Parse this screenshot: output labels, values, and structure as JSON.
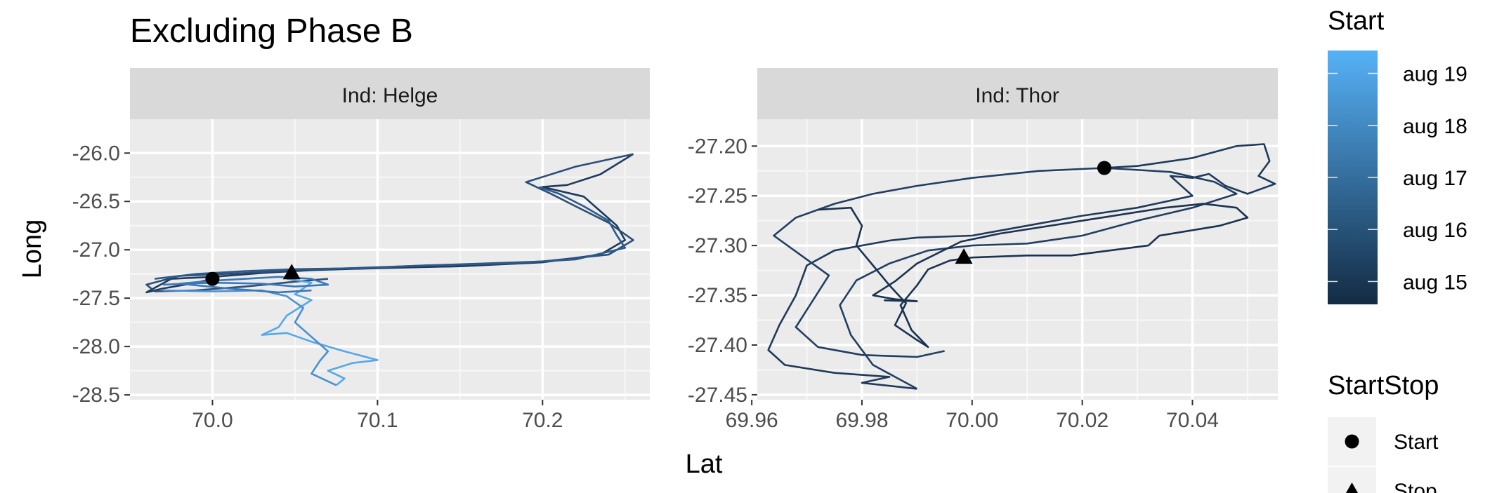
{
  "chart_data": {
    "type": "line",
    "title": "Excluding Phase B",
    "xlabel": "Lat",
    "ylabel": "Long",
    "facets": [
      {
        "strip": "Ind: Helge",
        "xlim": [
          69.95,
          70.265
        ],
        "ylim": [
          -28.55,
          -25.65
        ],
        "xticks": [
          70.0,
          70.1,
          70.2
        ],
        "xtick_labels": [
          "70.0",
          "70.1",
          "70.2"
        ],
        "yticks": [
          -26.0,
          -26.5,
          -27.0,
          -27.5,
          -28.0,
          -28.5
        ],
        "ytick_labels": [
          "-26.0",
          "-26.5",
          "-27.0",
          "-27.5",
          "-28.0",
          "-28.5"
        ],
        "segments": [
          {
            "color": "#1f3a5a",
            "points": [
              [
                70.0,
                -27.3
              ],
              [
                69.99,
                -27.34
              ],
              [
                69.97,
                -27.4
              ],
              [
                69.96,
                -27.44
              ],
              [
                69.975,
                -27.3
              ],
              [
                70.0,
                -27.28
              ],
              [
                70.03,
                -27.24
              ],
              [
                70.06,
                -27.21
              ],
              [
                70.1,
                -27.19
              ],
              [
                70.15,
                -27.17
              ],
              [
                70.2,
                -27.13
              ],
              [
                70.235,
                -27.05
              ],
              [
                70.25,
                -26.9
              ],
              [
                70.245,
                -26.75
              ],
              [
                70.235,
                -26.6
              ],
              [
                70.225,
                -26.45
              ],
              [
                70.2,
                -26.35
              ],
              [
                70.215,
                -26.33
              ],
              [
                70.235,
                -26.22
              ],
              [
                70.255,
                -26.01
              ]
            ]
          },
          {
            "color": "#2b4f78",
            "points": [
              [
                70.255,
                -26.01
              ],
              [
                70.22,
                -26.14
              ],
              [
                70.19,
                -26.3
              ],
              [
                70.205,
                -26.42
              ],
              [
                70.22,
                -26.55
              ],
              [
                70.24,
                -26.72
              ],
              [
                70.255,
                -26.9
              ],
              [
                70.24,
                -27.05
              ],
              [
                70.2,
                -27.12
              ],
              [
                70.15,
                -27.15
              ],
              [
                70.1,
                -27.18
              ],
              [
                70.05,
                -27.21
              ],
              [
                70.02,
                -27.24
              ],
              [
                69.98,
                -27.27
              ],
              [
                69.96,
                -27.36
              ],
              [
                69.965,
                -27.43
              ],
              [
                69.99,
                -27.42
              ],
              [
                70.02,
                -27.38
              ],
              [
                70.05,
                -27.33
              ],
              [
                70.07,
                -27.3
              ]
            ]
          },
          {
            "color": "#2c5a8c",
            "points": [
              [
                69.965,
                -27.3
              ],
              [
                69.99,
                -27.25
              ],
              [
                70.02,
                -27.22
              ],
              [
                70.05,
                -27.2
              ],
              [
                70.09,
                -27.19
              ],
              [
                70.13,
                -27.16
              ],
              [
                70.18,
                -27.14
              ],
              [
                70.22,
                -27.1
              ],
              [
                70.25,
                -26.98
              ],
              [
                70.245,
                -26.85
              ],
              [
                70.24,
                -26.7
              ],
              [
                70.225,
                -26.55
              ],
              [
                70.21,
                -26.42
              ],
              [
                70.198,
                -26.35
              ]
            ]
          },
          {
            "color": "#56a8e8",
            "points": [
              [
                70.045,
                -27.3
              ],
              [
                70.06,
                -27.34
              ],
              [
                70.05,
                -27.46
              ],
              [
                70.06,
                -27.52
              ],
              [
                70.045,
                -27.68
              ],
              [
                70.04,
                -27.8
              ],
              [
                70.03,
                -27.88
              ],
              [
                70.045,
                -27.86
              ],
              [
                70.06,
                -27.95
              ],
              [
                70.08,
                -28.05
              ],
              [
                70.1,
                -28.14
              ],
              [
                70.085,
                -28.17
              ],
              [
                70.07,
                -28.25
              ],
              [
                70.08,
                -28.33
              ],
              [
                70.075,
                -28.4
              ]
            ]
          },
          {
            "color": "#4a90d0",
            "points": [
              [
                70.075,
                -28.4
              ],
              [
                70.06,
                -28.28
              ],
              [
                70.065,
                -28.15
              ],
              [
                70.07,
                -28.05
              ],
              [
                70.06,
                -27.9
              ],
              [
                70.05,
                -27.75
              ],
              [
                70.055,
                -27.6
              ],
              [
                70.045,
                -27.48
              ],
              [
                70.03,
                -27.42
              ],
              [
                70.0,
                -27.43
              ],
              [
                69.97,
                -27.42
              ]
            ]
          },
          {
            "color": "#3a78b8",
            "points": [
              [
                69.97,
                -27.36
              ],
              [
                70.0,
                -27.34
              ],
              [
                70.03,
                -27.35
              ],
              [
                70.05,
                -27.38
              ],
              [
                70.07,
                -27.36
              ],
              [
                70.06,
                -27.3
              ],
              [
                70.04,
                -27.28
              ],
              [
                70.02,
                -27.3
              ],
              [
                70.0,
                -27.32
              ],
              [
                69.98,
                -27.35
              ],
              [
                70.01,
                -27.4
              ],
              [
                70.04,
                -27.44
              ],
              [
                70.06,
                -27.42
              ]
            ]
          }
        ],
        "points": [
          {
            "label": "Start",
            "shape": "circle",
            "x": 70.0,
            "y": -27.3
          },
          {
            "label": "Stop",
            "shape": "triangle",
            "x": 70.048,
            "y": -27.24
          }
        ]
      },
      {
        "strip": "Ind: Thor",
        "xlim": [
          69.961,
          70.0555
        ],
        "ylim": [
          -27.455,
          -27.173
        ],
        "xticks": [
          69.96,
          69.98,
          70.0,
          70.02,
          70.04
        ],
        "xtick_labels": [
          "69.96",
          "69.98",
          "70.00",
          "70.02",
          "70.04"
        ],
        "yticks": [
          -27.2,
          -27.25,
          -27.3,
          -27.35,
          -27.4,
          -27.45
        ],
        "ytick_labels": [
          "-27.20",
          "-27.25",
          "-27.30",
          "-27.35",
          "-27.40",
          "-27.45"
        ],
        "segments": [
          {
            "color": "#1f3a5a",
            "points": [
              [
                70.024,
                -27.222
              ],
              [
                70.03,
                -27.22
              ],
              [
                70.04,
                -27.212
              ],
              [
                70.048,
                -27.2
              ],
              [
                70.053,
                -27.198
              ],
              [
                70.054,
                -27.215
              ],
              [
                70.052,
                -27.23
              ],
              [
                70.055,
                -27.238
              ],
              [
                70.05,
                -27.248
              ],
              [
                70.046,
                -27.24
              ],
              [
                70.043,
                -27.228
              ],
              [
                70.04,
                -27.232
              ],
              [
                70.036,
                -27.23
              ],
              [
                70.04,
                -27.25
              ],
              [
                70.03,
                -27.262
              ],
              [
                70.02,
                -27.27
              ],
              [
                70.01,
                -27.28
              ],
              [
                70.0,
                -27.29
              ],
              [
                69.99,
                -27.292
              ],
              [
                69.985,
                -27.295
              ],
              [
                69.975,
                -27.305
              ],
              [
                69.97,
                -27.32
              ],
              [
                69.968,
                -27.35
              ],
              [
                69.965,
                -27.38
              ],
              [
                69.963,
                -27.405
              ],
              [
                69.966,
                -27.42
              ],
              [
                69.975,
                -27.428
              ],
              [
                69.985,
                -27.432
              ],
              [
                69.98,
                -27.438
              ],
              [
                69.99,
                -27.444
              ]
            ]
          },
          {
            "color": "#223f62",
            "points": [
              [
                69.99,
                -27.444
              ],
              [
                69.982,
                -27.42
              ],
              [
                69.978,
                -27.39
              ],
              [
                69.976,
                -27.36
              ],
              [
                69.979,
                -27.335
              ],
              [
                69.985,
                -27.318
              ],
              [
                69.992,
                -27.305
              ],
              [
                70.0,
                -27.3
              ],
              [
                70.01,
                -27.298
              ],
              [
                70.02,
                -27.29
              ],
              [
                70.03,
                -27.275
              ],
              [
                70.04,
                -27.262
              ],
              [
                70.048,
                -27.248
              ],
              [
                70.044,
                -27.236
              ],
              [
                70.036,
                -27.226
              ],
              [
                70.024,
                -27.222
              ],
              [
                70.012,
                -27.225
              ],
              [
                70.0,
                -27.232
              ],
              [
                69.99,
                -27.24
              ],
              [
                69.982,
                -27.248
              ],
              [
                69.975,
                -27.258
              ],
              [
                69.968,
                -27.272
              ],
              [
                69.964,
                -27.29
              ],
              [
                69.969,
                -27.31
              ],
              [
                69.974,
                -27.33
              ],
              [
                69.971,
                -27.356
              ],
              [
                69.968,
                -27.382
              ],
              [
                69.972,
                -27.402
              ],
              [
                69.98,
                -27.41
              ],
              [
                69.99,
                -27.412
              ],
              [
                69.995,
                -27.406
              ]
            ]
          },
          {
            "color": "#1b3350",
            "points": [
              [
                69.972,
                -27.264
              ],
              [
                69.978,
                -27.262
              ],
              [
                69.98,
                -27.28
              ],
              [
                69.979,
                -27.3
              ],
              [
                69.982,
                -27.32
              ],
              [
                69.985,
                -27.34
              ],
              [
                69.988,
                -27.358
              ],
              [
                69.986,
                -27.38
              ],
              [
                69.99,
                -27.395
              ],
              [
                69.992,
                -27.402
              ],
              [
                69.989,
                -27.385
              ],
              [
                69.987,
                -27.36
              ],
              [
                69.99,
                -27.34
              ],
              [
                69.992,
                -27.324
              ],
              [
                69.996,
                -27.315
              ],
              [
                70.0,
                -27.312
              ],
              [
                70.01,
                -27.31
              ],
              [
                70.018,
                -27.31
              ],
              [
                70.025,
                -27.305
              ],
              [
                70.032,
                -27.3
              ],
              [
                70.034,
                -27.29
              ],
              [
                70.045,
                -27.28
              ],
              [
                70.05,
                -27.272
              ],
              [
                70.048,
                -27.262
              ],
              [
                70.042,
                -27.258
              ],
              [
                70.035,
                -27.262
              ],
              [
                70.02,
                -27.275
              ],
              [
                70.005,
                -27.288
              ],
              [
                69.998,
                -27.296
              ],
              [
                69.99,
                -27.318
              ],
              [
                69.986,
                -27.336
              ],
              [
                69.982,
                -27.35
              ],
              [
                69.986,
                -27.354
              ],
              [
                69.99,
                -27.356
              ],
              [
                69.984,
                -27.355
              ]
            ]
          }
        ],
        "points": [
          {
            "label": "Start",
            "shape": "circle",
            "x": 70.024,
            "y": -27.222
          },
          {
            "label": "Stop",
            "shape": "triangle",
            "x": 69.9985,
            "y": -27.312
          }
        ]
      }
    ],
    "legend": {
      "placement": "right",
      "colorbar": {
        "title": "Start",
        "labels": [
          "aug 19",
          "aug 18",
          "aug 17",
          "aug 16",
          "aug 15"
        ],
        "color_low": "#132b43",
        "color_high": "#56b1f7"
      },
      "shape": {
        "title": "StartStop",
        "items": [
          {
            "label": "Start",
            "shape": "circle"
          },
          {
            "label": "Stop",
            "shape": "triangle"
          }
        ]
      }
    },
    "grid": true
  }
}
